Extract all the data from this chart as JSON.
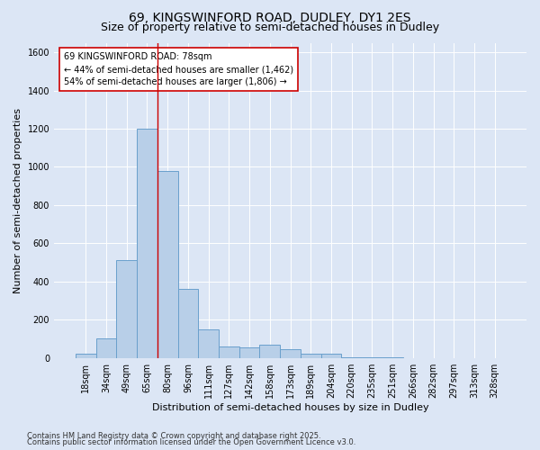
{
  "title1": "69, KINGSWINFORD ROAD, DUDLEY, DY1 2ES",
  "title2": "Size of property relative to semi-detached houses in Dudley",
  "xlabel": "Distribution of semi-detached houses by size in Dudley",
  "ylabel": "Number of semi-detached properties",
  "categories": [
    "18sqm",
    "34sqm",
    "49sqm",
    "65sqm",
    "80sqm",
    "96sqm",
    "111sqm",
    "127sqm",
    "142sqm",
    "158sqm",
    "173sqm",
    "189sqm",
    "204sqm",
    "220sqm",
    "235sqm",
    "251sqm",
    "266sqm",
    "282sqm",
    "297sqm",
    "313sqm",
    "328sqm"
  ],
  "values": [
    20,
    100,
    510,
    1200,
    980,
    360,
    150,
    60,
    55,
    70,
    45,
    20,
    20,
    5,
    5,
    2,
    0,
    0,
    0,
    0,
    0
  ],
  "bar_color": "#b8cfe8",
  "bar_edge_color": "#6aa0cc",
  "vline_color": "#cc0000",
  "annotation_text": "69 KINGSWINFORD ROAD: 78sqm\n← 44% of semi-detached houses are smaller (1,462)\n54% of semi-detached houses are larger (1,806) →",
  "annotation_box_color": "#cc0000",
  "bg_color": "#dce6f5",
  "plot_bg_color": "#dce6f5",
  "ylim": [
    0,
    1650
  ],
  "yticks": [
    0,
    200,
    400,
    600,
    800,
    1000,
    1200,
    1400,
    1600
  ],
  "footer1": "Contains HM Land Registry data © Crown copyright and database right 2025.",
  "footer2": "Contains public sector information licensed under the Open Government Licence v3.0.",
  "title1_fontsize": 10,
  "title2_fontsize": 9,
  "xlabel_fontsize": 8,
  "ylabel_fontsize": 8,
  "tick_fontsize": 7,
  "annotation_fontsize": 7,
  "footer_fontsize": 6
}
